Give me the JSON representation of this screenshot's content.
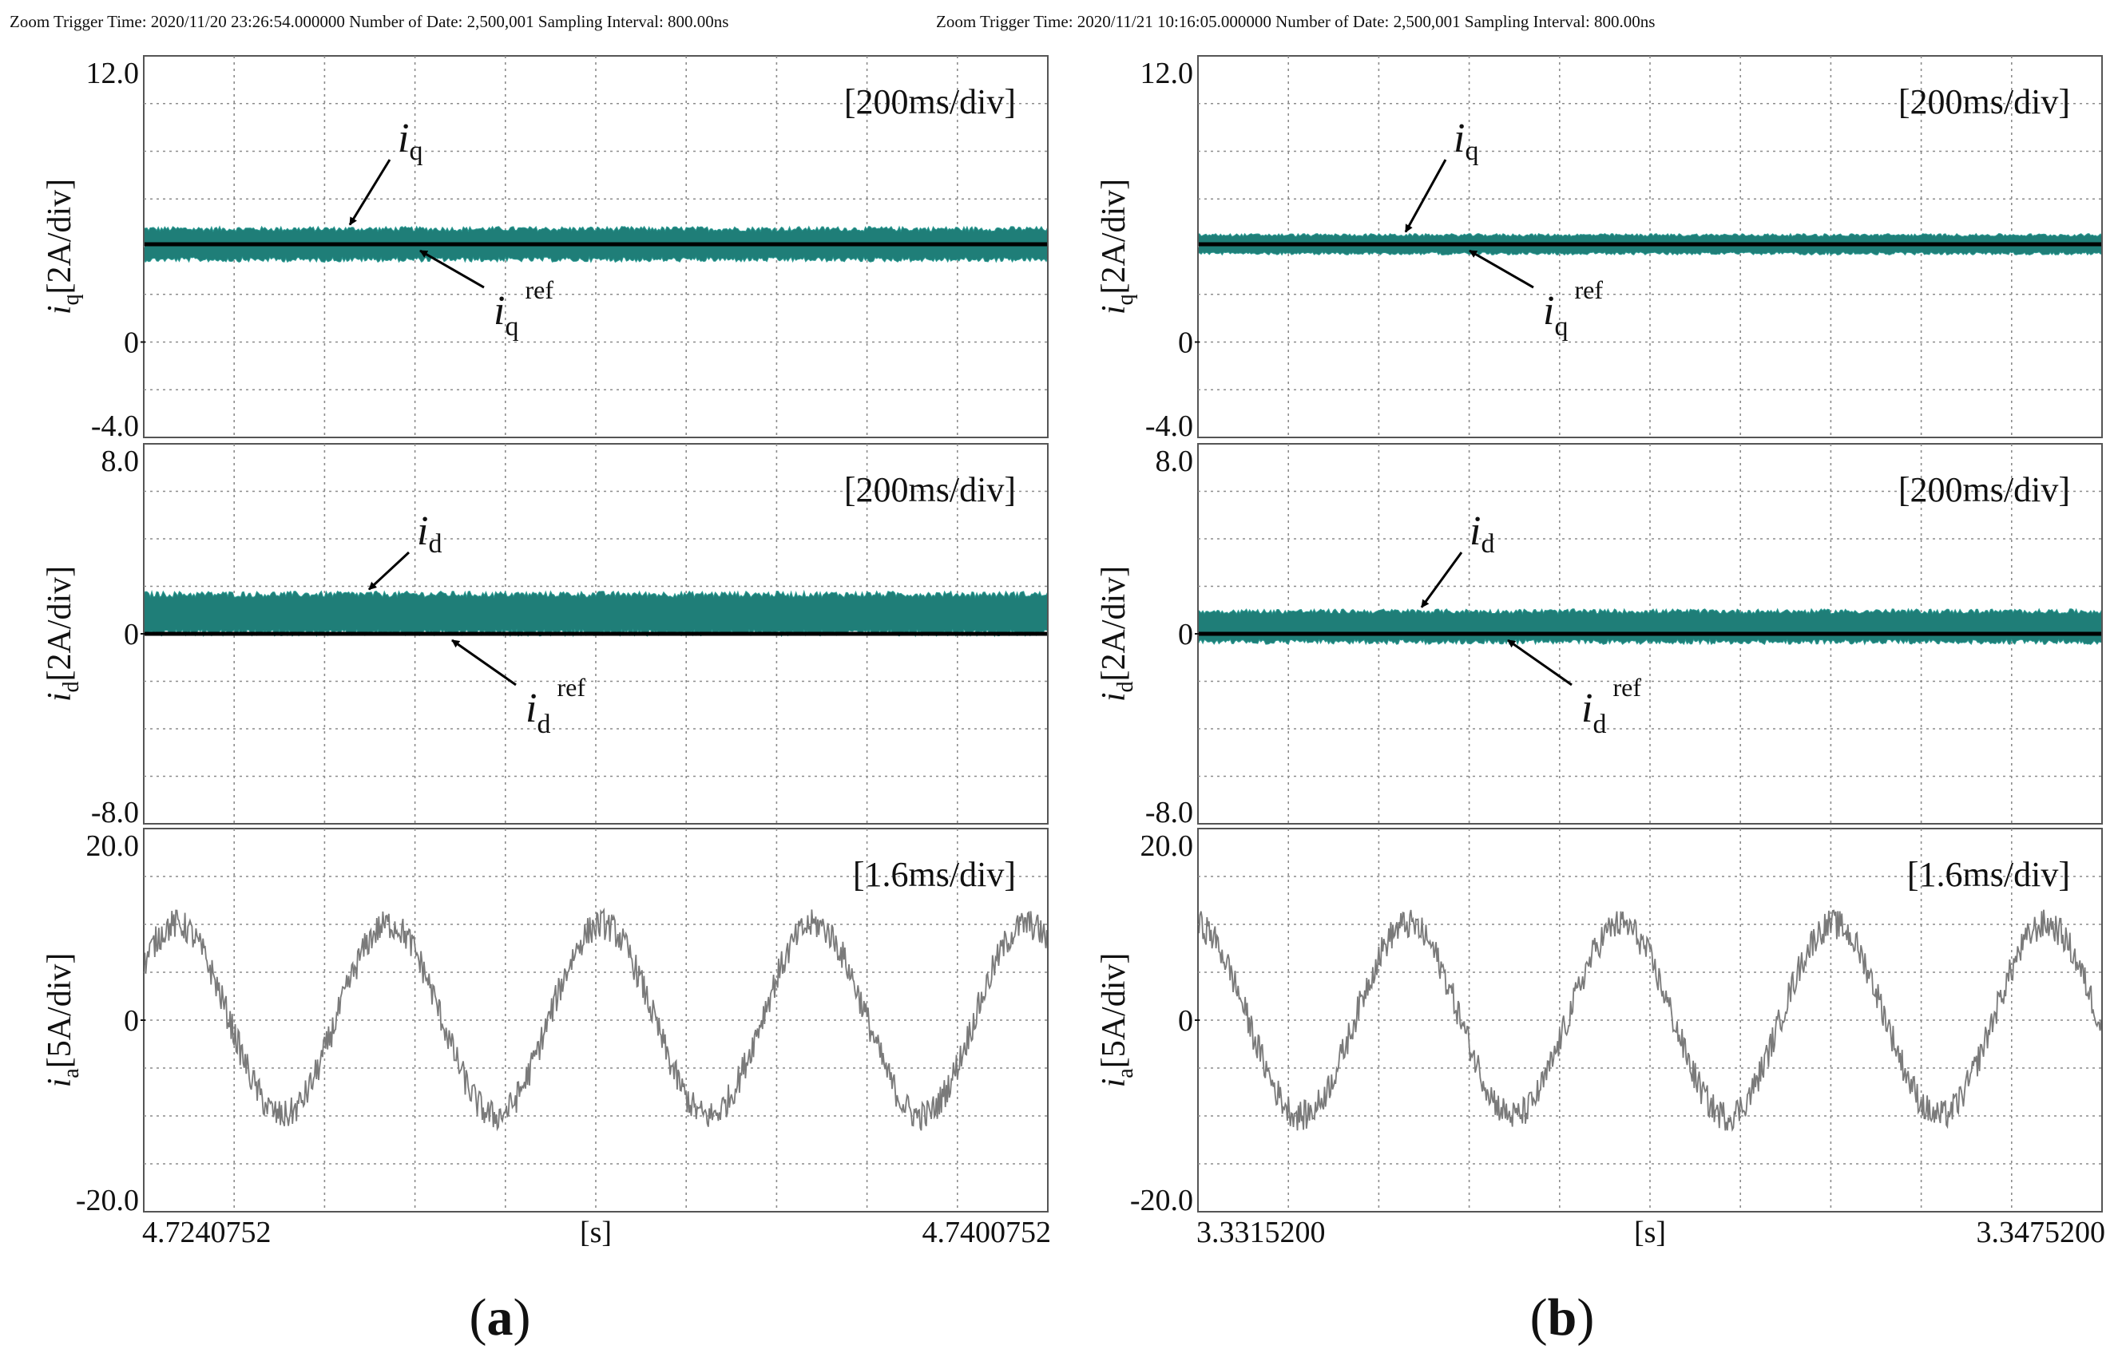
{
  "chart_data": [
    {
      "panel_label": "a",
      "header": "Zoom Trigger Time: 2020/11/20 23:26:54.000000    Number of Date: 2,500,001 Sampling Interval: 800.00ns",
      "x_start": "4.7240752",
      "x_end": "4.7400752",
      "x_unit": "[s]",
      "subplots": [
        {
          "type": "line",
          "ylabel_main": "i",
          "ylabel_sub": "q",
          "ylabel_rest": "[2A/div]",
          "timebase": "[200ms/div]",
          "ylim": [
            -4,
            12
          ],
          "ytick_labels": [
            {
              "value": 12,
              "text": "12.0"
            },
            {
              "value": 0,
              "text": "0"
            },
            {
              "value": -4,
              "text": "-4.0"
            }
          ],
          "measured": {
            "name": "iq",
            "mean": 4.1,
            "ripple": 0.75
          },
          "reference": {
            "name": "iq ref",
            "value": 4.1
          },
          "annotations": [
            {
              "main": "i",
              "sub": "q",
              "sup": ""
            },
            {
              "main": "i",
              "sub": "q",
              "sup": "ref"
            }
          ]
        },
        {
          "type": "line",
          "ylabel_main": "i",
          "ylabel_sub": "d",
          "ylabel_rest": "[2A/div]",
          "timebase": "[200ms/div]",
          "ylim": [
            -8,
            8
          ],
          "ytick_labels": [
            {
              "value": 8,
              "text": "8.0"
            },
            {
              "value": 0,
              "text": "0"
            },
            {
              "value": -8,
              "text": "-8.0"
            }
          ],
          "measured": {
            "name": "id",
            "mean": 0.85,
            "ripple": 0.95
          },
          "reference": {
            "name": "id ref",
            "value": 0
          },
          "annotations": [
            {
              "main": "i",
              "sub": "d",
              "sup": ""
            },
            {
              "main": "i",
              "sub": "d",
              "sup": "ref"
            }
          ]
        },
        {
          "type": "line",
          "ylabel_main": "i",
          "ylabel_sub": "a",
          "ylabel_rest": "[5A/div]",
          "timebase": "[1.6ms/div]",
          "ylim": [
            -20,
            20
          ],
          "ytick_labels": [
            {
              "value": 20,
              "text": "20.0"
            },
            {
              "value": 0,
              "text": "0"
            },
            {
              "value": -20,
              "text": "-20.0"
            }
          ],
          "measured": {
            "name": "ia",
            "amplitude": 10,
            "noise": 1.6,
            "cycles": 4.25,
            "phase_deg": 35
          }
        }
      ]
    },
    {
      "panel_label": "b",
      "header": "Zoom Trigger Time: 2020/11/21 10:16:05.000000    Number of Date: 2,500,001 Sampling Interval: 800.00ns",
      "x_start": "3.3315200",
      "x_end": "3.3475200",
      "x_unit": "[s]",
      "subplots": [
        {
          "type": "line",
          "ylabel_main": "i",
          "ylabel_sub": "q",
          "ylabel_rest": "[2A/div]",
          "timebase": "[200ms/div]",
          "ylim": [
            -4,
            12
          ],
          "ytick_labels": [
            {
              "value": 12,
              "text": "12.0"
            },
            {
              "value": 0,
              "text": "0"
            },
            {
              "value": -4,
              "text": "-4.0"
            }
          ],
          "measured": {
            "name": "iq",
            "mean": 4.1,
            "ripple": 0.45
          },
          "reference": {
            "name": "iq ref",
            "value": 4.1
          },
          "annotations": [
            {
              "main": "i",
              "sub": "q",
              "sup": ""
            },
            {
              "main": "i",
              "sub": "q",
              "sup": "ref"
            }
          ]
        },
        {
          "type": "line",
          "ylabel_main": "i",
          "ylabel_sub": "d",
          "ylabel_rest": "[2A/div]",
          "timebase": "[200ms/div]",
          "ylim": [
            -8,
            8
          ],
          "ytick_labels": [
            {
              "value": 8,
              "text": "8.0"
            },
            {
              "value": 0,
              "text": "0"
            },
            {
              "value": -8,
              "text": "-8.0"
            }
          ],
          "measured": {
            "name": "id",
            "mean": 0.3,
            "ripple": 0.75
          },
          "reference": {
            "name": "id ref",
            "value": 0
          },
          "annotations": [
            {
              "main": "i",
              "sub": "d",
              "sup": ""
            },
            {
              "main": "i",
              "sub": "d",
              "sup": "ref"
            }
          ]
        },
        {
          "type": "line",
          "ylabel_main": "i",
          "ylabel_sub": "a",
          "ylabel_rest": "[5A/div]",
          "timebase": "[1.6ms/div]",
          "ylim": [
            -20,
            20
          ],
          "ytick_labels": [
            {
              "value": 20,
              "text": "20.0"
            },
            {
              "value": 0,
              "text": "0"
            },
            {
              "value": -20,
              "text": "-20.0"
            }
          ],
          "measured": {
            "name": "ia",
            "amplitude": 10,
            "noise": 1.6,
            "cycles": 4.25,
            "phase_deg": 95
          }
        }
      ]
    }
  ],
  "colors": {
    "band": "#1f7e78",
    "band_edge": "#2b9a92",
    "reference": "#000000",
    "phase_current": "#7a7a7a",
    "grid": "#8c8c8c",
    "frame": "#555555"
  }
}
